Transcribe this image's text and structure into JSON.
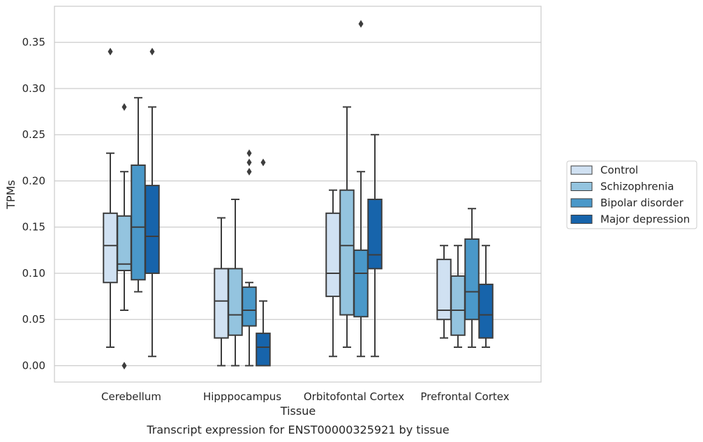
{
  "chart_data": {
    "type": "box",
    "title": "",
    "caption": "Transcript expression for ENST00000325921 by tissue",
    "xlabel": "Tissue",
    "ylabel": "TPMs",
    "ylim": [
      -0.018,
      0.388
    ],
    "yticks": [
      0.0,
      0.05,
      0.1,
      0.15,
      0.2,
      0.25,
      0.3,
      0.35
    ],
    "ytick_labels": [
      "0.00",
      "0.05",
      "0.10",
      "0.15",
      "0.20",
      "0.25",
      "0.30",
      "0.35"
    ],
    "grid": "horizontal",
    "legend_position": "right",
    "categories": [
      "Cerebellum",
      "Hipppocampus",
      "Orbitofontal Cortex",
      "Prefrontal Cortex"
    ],
    "series": [
      {
        "name": "Control",
        "color": "#d0e1f2",
        "boxes": [
          {
            "whisker_low": 0.02,
            "q1": 0.09,
            "median": 0.13,
            "q3": 0.165,
            "whisker_high": 0.23,
            "outliers": [
              0.34
            ]
          },
          {
            "whisker_low": 0.0,
            "q1": 0.03,
            "median": 0.07,
            "q3": 0.105,
            "whisker_high": 0.16,
            "outliers": []
          },
          {
            "whisker_low": 0.01,
            "q1": 0.075,
            "median": 0.1,
            "q3": 0.165,
            "whisker_high": 0.19,
            "outliers": []
          },
          {
            "whisker_low": 0.03,
            "q1": 0.05,
            "median": 0.06,
            "q3": 0.115,
            "whisker_high": 0.13,
            "outliers": []
          }
        ]
      },
      {
        "name": "Schizophrenia",
        "color": "#94c4df",
        "boxes": [
          {
            "whisker_low": 0.06,
            "q1": 0.103,
            "median": 0.11,
            "q3": 0.162,
            "whisker_high": 0.21,
            "outliers": [
              0.28,
              0.0
            ]
          },
          {
            "whisker_low": 0.0,
            "q1": 0.033,
            "median": 0.055,
            "q3": 0.105,
            "whisker_high": 0.18,
            "outliers": []
          },
          {
            "whisker_low": 0.02,
            "q1": 0.055,
            "median": 0.13,
            "q3": 0.19,
            "whisker_high": 0.28,
            "outliers": []
          },
          {
            "whisker_low": 0.02,
            "q1": 0.033,
            "median": 0.06,
            "q3": 0.097,
            "whisker_high": 0.13,
            "outliers": []
          }
        ]
      },
      {
        "name": "Bipolar disorder",
        "color": "#4a98c9",
        "boxes": [
          {
            "whisker_low": 0.08,
            "q1": 0.093,
            "median": 0.15,
            "q3": 0.217,
            "whisker_high": 0.29,
            "outliers": []
          },
          {
            "whisker_low": 0.0,
            "q1": 0.043,
            "median": 0.06,
            "q3": 0.085,
            "whisker_high": 0.09,
            "outliers": [
              0.23,
              0.22,
              0.21
            ]
          },
          {
            "whisker_low": 0.01,
            "q1": 0.053,
            "median": 0.1,
            "q3": 0.125,
            "whisker_high": 0.21,
            "outliers": [
              0.37
            ]
          },
          {
            "whisker_low": 0.02,
            "q1": 0.05,
            "median": 0.08,
            "q3": 0.137,
            "whisker_high": 0.17,
            "outliers": []
          }
        ]
      },
      {
        "name": "Major depression",
        "color": "#1764ab",
        "boxes": [
          {
            "whisker_low": 0.01,
            "q1": 0.1,
            "median": 0.14,
            "q3": 0.195,
            "whisker_high": 0.28,
            "outliers": [
              0.34
            ]
          },
          {
            "whisker_low": 0.0,
            "q1": 0.0,
            "median": 0.02,
            "q3": 0.035,
            "whisker_high": 0.07,
            "outliers": [
              0.22
            ]
          },
          {
            "whisker_low": 0.01,
            "q1": 0.105,
            "median": 0.12,
            "q3": 0.18,
            "whisker_high": 0.25,
            "outliers": []
          },
          {
            "whisker_low": 0.02,
            "q1": 0.03,
            "median": 0.055,
            "q3": 0.088,
            "whisker_high": 0.13,
            "outliers": []
          }
        ]
      }
    ]
  }
}
